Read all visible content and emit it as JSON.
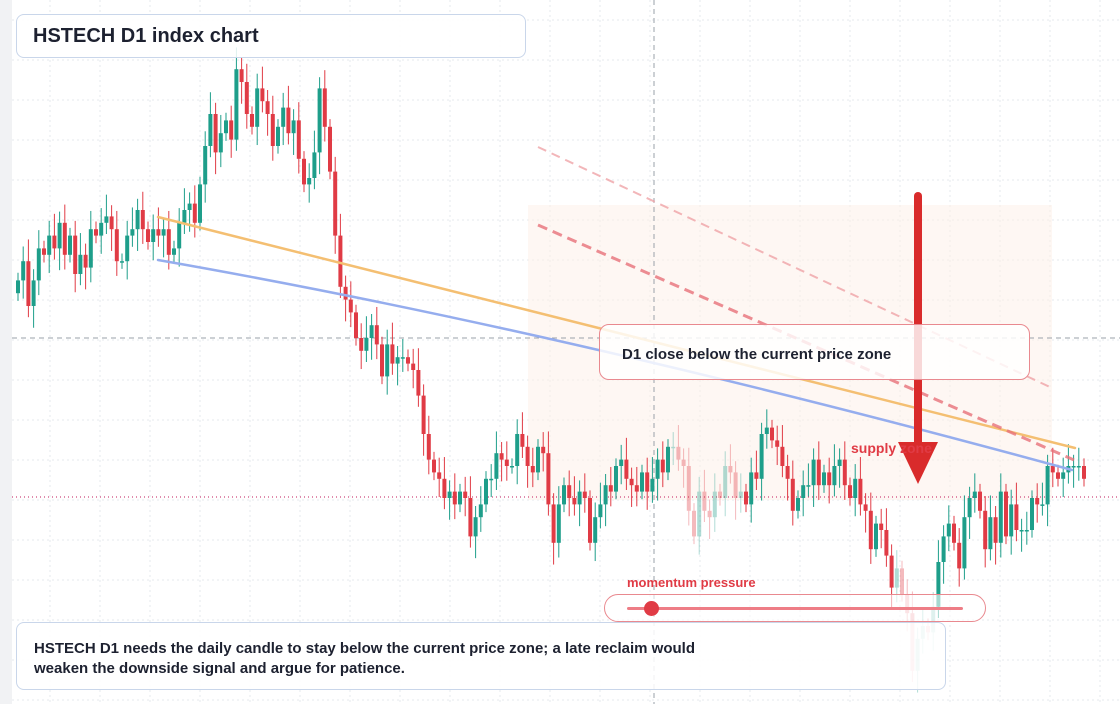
{
  "title": "HSTECH D1 index chart",
  "condition_label": "D1 close below the current price zone",
  "supply_label": "supply zone",
  "momentum": {
    "label": "momentum pressure",
    "level": 0.07
  },
  "note": "HSTECH D1 needs the daily candle to stay below the current price zone; a late reclaim would weaken the downside signal and argue for patience.",
  "colors": {
    "up": "#1e9e8a",
    "down": "#e03b45",
    "trend_orange": "#f4bf72",
    "trend_blue": "#95adee",
    "arrow": "#d92b2b",
    "panel_border": "#c9d6ea",
    "accent_border": "#e9898f"
  },
  "chart_data": {
    "type": "candlestick",
    "title": "HSTECH D1 index chart",
    "ylim": [
      0,
      100
    ],
    "grid": true,
    "closes": [
      64,
      67,
      60,
      64,
      69,
      68,
      71,
      69,
      73,
      68,
      71,
      65,
      68,
      66,
      72,
      71,
      73,
      74,
      72,
      67,
      67,
      71,
      72,
      75,
      72,
      70,
      72,
      71,
      72,
      68,
      69,
      73,
      75,
      76,
      73,
      79,
      85,
      90,
      84,
      87,
      89,
      86,
      97,
      95,
      90,
      88,
      94,
      92,
      90,
      85,
      88,
      91,
      87,
      89,
      83,
      79,
      80,
      84,
      94,
      88,
      81,
      71,
      63,
      61,
      59,
      55,
      53,
      55,
      57,
      54,
      49,
      54,
      51,
      52,
      52,
      51,
      50,
      46,
      40,
      36,
      34,
      33,
      30,
      31,
      29,
      31,
      30,
      24,
      27,
      29,
      33,
      33,
      37,
      36,
      35,
      35,
      40,
      38,
      35,
      34,
      38,
      37,
      29,
      23,
      29,
      32,
      30,
      29,
      31,
      30,
      23,
      27,
      29,
      32,
      31,
      35,
      36,
      33,
      32,
      31,
      34,
      31,
      33,
      36,
      34,
      38,
      38,
      36,
      35,
      28,
      24,
      31,
      28,
      27,
      31,
      30,
      35,
      34,
      30,
      31,
      29,
      34,
      33,
      40,
      41,
      39,
      38,
      35,
      33,
      28,
      30,
      32,
      32,
      36,
      32,
      34,
      32,
      35,
      36,
      32,
      30,
      33,
      29,
      28,
      22,
      26,
      25,
      21,
      16,
      19,
      15,
      12,
      3,
      8,
      10,
      9,
      13,
      20,
      24,
      26,
      23,
      19,
      27,
      30,
      31,
      28,
      22,
      27,
      23,
      31,
      24,
      29,
      25,
      25,
      25,
      30,
      29,
      29,
      35,
      34,
      33,
      34,
      35,
      35,
      35,
      33
    ]
  }
}
